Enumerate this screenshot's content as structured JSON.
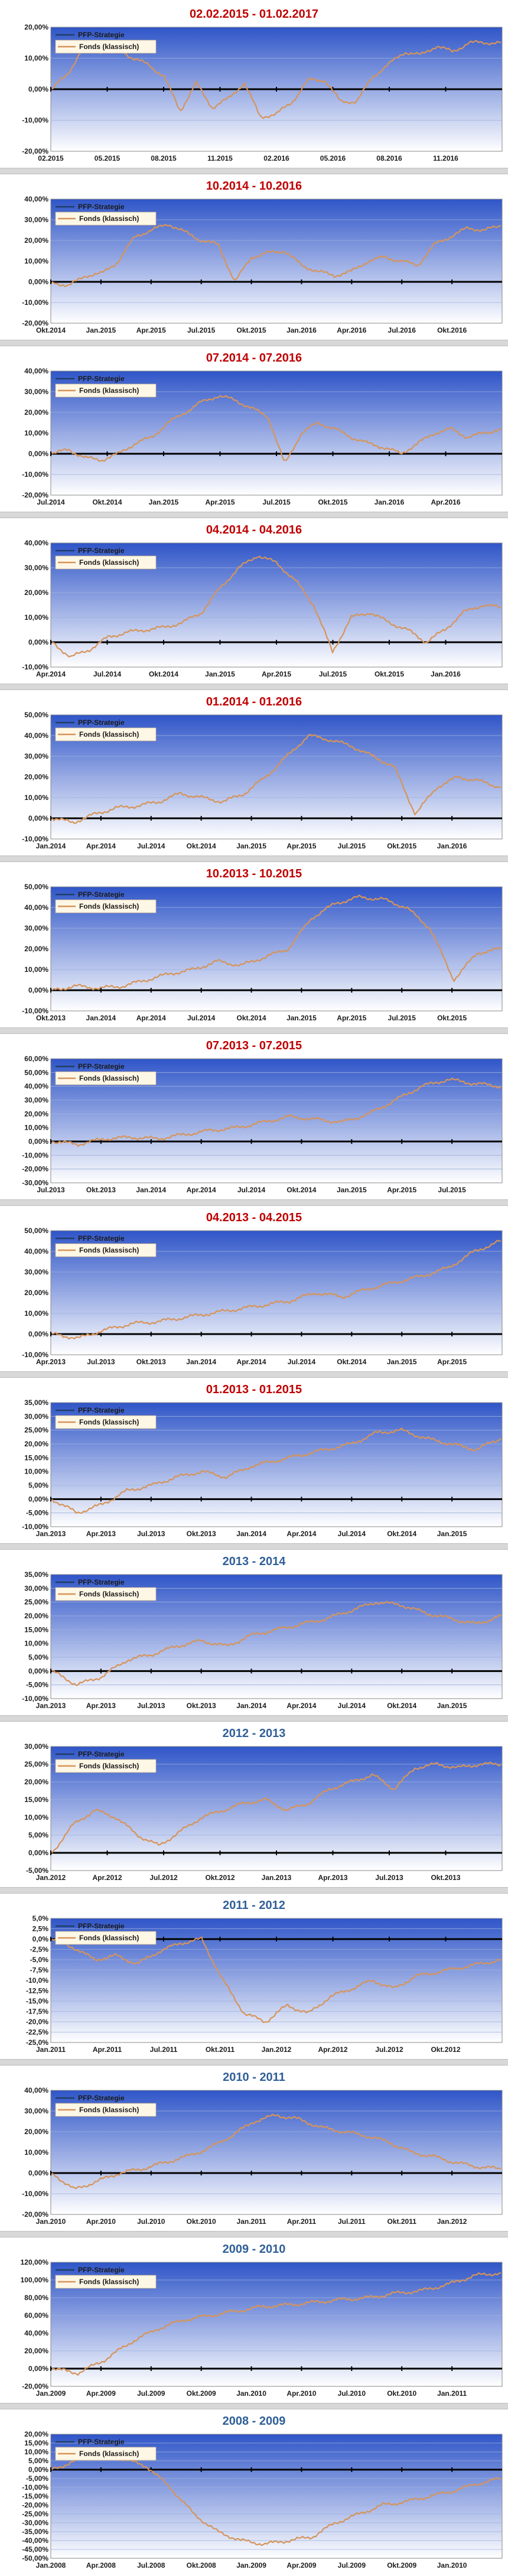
{
  "legend": {
    "strategy": "PFP-Strategie",
    "fund": "Fonds (klassisch)"
  },
  "colors": {
    "title_red": "#c00000",
    "title_blue": "#2f5f98",
    "fund_line": "#d6945a",
    "strategy_line": "#1f3e6a",
    "zero_line": "#000000",
    "plot_top": "#2f55c8",
    "plot_bottom": "#ffffff"
  },
  "chart_data": [
    {
      "type": "line",
      "title": "02.02.2015 - 01.02.2017",
      "title_color": "red",
      "ylim": [
        -20,
        20
      ],
      "ytick_step": 10,
      "xticks": [
        "02.2015",
        "05.2015",
        "08.2015",
        "11.2015",
        "02.2016",
        "05.2016",
        "08.2016",
        "11.2016"
      ],
      "series": [
        {
          "name": "PFP-Strategie",
          "values": []
        },
        {
          "name": "Fonds (klassisch)",
          "values": [
            0,
            5,
            14,
            12,
            14,
            10,
            8,
            4,
            -7,
            2,
            -6,
            -3,
            2,
            -9,
            -8,
            -4,
            3,
            3,
            -4,
            -4,
            4,
            8,
            12,
            11,
            14,
            12,
            15,
            15,
            15
          ]
        }
      ],
      "legend_position": "top-left"
    },
    {
      "type": "line",
      "title": "10.2014 - 10.2016",
      "title_color": "red",
      "ylim": [
        -20,
        40
      ],
      "ytick_step": 10,
      "xticks": [
        "Okt.2014",
        "Jan.2015",
        "Apr.2015",
        "Jul.2015",
        "Okt.2015",
        "Jan.2016",
        "Apr.2016",
        "Jul.2016",
        "Okt.2016"
      ],
      "series": [
        {
          "name": "PFP-Strategie",
          "values": []
        },
        {
          "name": "Fonds (klassisch)",
          "values": [
            0,
            -2,
            3,
            4,
            10,
            22,
            25,
            28,
            24,
            20,
            18,
            0,
            12,
            14,
            15,
            8,
            5,
            3,
            5,
            10,
            12,
            10,
            8,
            18,
            22,
            26,
            25,
            27
          ]
        }
      ],
      "legend_position": "top-left"
    },
    {
      "type": "line",
      "title": "07.2014 - 07.2016",
      "title_color": "red",
      "ylim": [
        -20,
        40
      ],
      "ytick_step": 10,
      "xticks": [
        "Jul.2014",
        "Okt.2014",
        "Jan.2015",
        "Apr.2015",
        "Jul.2015",
        "Okt.2015",
        "Jan.2016",
        "Apr.2016"
      ],
      "series": [
        {
          "name": "PFP-Strategie",
          "values": []
        },
        {
          "name": "Fonds (klassisch)",
          "values": [
            0,
            2,
            -2,
            -3,
            0,
            5,
            8,
            15,
            20,
            25,
            28,
            26,
            22,
            18,
            -5,
            10,
            15,
            12,
            8,
            5,
            3,
            0,
            5,
            10,
            12,
            8,
            10,
            12
          ]
        }
      ],
      "legend_position": "top-left"
    },
    {
      "type": "line",
      "title": "04.2014 - 04.2016",
      "title_color": "red",
      "ylim": [
        -10,
        40
      ],
      "ytick_step": 10,
      "xticks": [
        "Apr.2014",
        "Jul.2014",
        "Okt.2014",
        "Jan.2015",
        "Apr.2015",
        "Jul.2015",
        "Okt.2015",
        "Jan.2016"
      ],
      "series": [
        {
          "name": "PFP-Strategie",
          "values": []
        },
        {
          "name": "Fonds (klassisch)",
          "values": [
            0,
            -6,
            -3,
            2,
            4,
            5,
            6,
            8,
            12,
            22,
            30,
            35,
            32,
            25,
            15,
            -4,
            10,
            12,
            8,
            5,
            0,
            5,
            12,
            15,
            14
          ]
        }
      ],
      "legend_position": "top-left"
    },
    {
      "type": "line",
      "title": "01.2014 - 01.2016",
      "title_color": "red",
      "ylim": [
        -10,
        50
      ],
      "ytick_step": 10,
      "xticks": [
        "Jan.2014",
        "Apr.2014",
        "Jul.2014",
        "Okt.2014",
        "Jan.2015",
        "Apr.2015",
        "Jul.2015",
        "Okt.2015",
        "Jan.2016"
      ],
      "series": [
        {
          "name": "PFP-Strategie",
          "values": []
        },
        {
          "name": "Fonds (klassisch)",
          "values": [
            0,
            -2,
            2,
            5,
            6,
            8,
            12,
            10,
            8,
            12,
            20,
            30,
            40,
            38,
            35,
            30,
            25,
            2,
            15,
            20,
            18,
            15
          ]
        }
      ],
      "legend_position": "top-left"
    },
    {
      "type": "line",
      "title": "10.2013 - 10.2015",
      "title_color": "red",
      "ylim": [
        -10,
        50
      ],
      "ytick_step": 10,
      "xticks": [
        "Okt.2013",
        "Jan.2014",
        "Apr.2014",
        "Jul.2014",
        "Okt.2014",
        "Jan.2015",
        "Apr.2015",
        "Jul.2015",
        "Okt.2015"
      ],
      "series": [
        {
          "name": "PFP-Strategie",
          "values": []
        },
        {
          "name": "Fonds (klassisch)",
          "values": [
            0,
            2,
            1,
            2,
            5,
            8,
            10,
            14,
            12,
            16,
            20,
            35,
            42,
            45,
            44,
            40,
            30,
            5,
            18,
            20
          ]
        }
      ],
      "legend_position": "top-left"
    },
    {
      "type": "line",
      "title": "07.2013 - 07.2015",
      "title_color": "red",
      "ylim": [
        -30,
        60
      ],
      "ytick_step": 10,
      "xticks": [
        "Jul.2013",
        "Okt.2013",
        "Jan.2014",
        "Apr.2014",
        "Jul.2014",
        "Okt.2014",
        "Jan.2015",
        "Apr.2015",
        "Jul.2015"
      ],
      "series": [
        {
          "name": "PFP-Strategie",
          "values": []
        },
        {
          "name": "Fonds (klassisch)",
          "values": [
            0,
            -2,
            2,
            3,
            2,
            5,
            8,
            10,
            14,
            18,
            16,
            14,
            20,
            30,
            40,
            45,
            42,
            40
          ]
        }
      ],
      "legend_position": "top-left"
    },
    {
      "type": "line",
      "title": "04.2013 - 04.2015",
      "title_color": "red",
      "ylim": [
        -10,
        50
      ],
      "ytick_step": 10,
      "xticks": [
        "Apr.2013",
        "Jul.2013",
        "Okt.2013",
        "Jan.2014",
        "Apr.2014",
        "Jul.2014",
        "Okt.2014",
        "Jan.2015",
        "Apr.2015"
      ],
      "series": [
        {
          "name": "PFP-Strategie",
          "values": []
        },
        {
          "name": "Fonds (klassisch)",
          "values": [
            0,
            -2,
            2,
            5,
            6,
            8,
            10,
            12,
            14,
            16,
            20,
            18,
            22,
            25,
            28,
            32,
            40,
            45
          ]
        }
      ],
      "legend_position": "top-left"
    },
    {
      "type": "line",
      "title": "01.2013 - 01.2015",
      "title_color": "red",
      "ylim": [
        -10,
        35
      ],
      "ytick_step": 5,
      "xticks": [
        "Jan.2013",
        "Apr.2013",
        "Jul.2013",
        "Okt.2013",
        "Jan.2014",
        "Apr.2014",
        "Jul.2014",
        "Okt.2014",
        "Jan.2015"
      ],
      "series": [
        {
          "name": "PFP-Strategie",
          "values": []
        },
        {
          "name": "Fonds (klassisch)",
          "values": [
            0,
            -5,
            -2,
            3,
            5,
            8,
            10,
            8,
            12,
            14,
            16,
            18,
            20,
            24,
            25,
            22,
            20,
            18,
            22
          ]
        }
      ],
      "legend_position": "top-left"
    },
    {
      "type": "line",
      "title": "2013 - 2014",
      "title_color": "blue",
      "ylim": [
        -10,
        35
      ],
      "ytick_step": 5,
      "xticks": [
        "Jan.2013",
        "Apr.2013",
        "Jul.2013",
        "Okt.2013",
        "Jan.2014",
        "Apr.2014",
        "Jul.2014",
        "Okt.2014",
        "Jan.2015"
      ],
      "series": [
        {
          "name": "PFP-Strategie",
          "values": []
        },
        {
          "name": "Fonds (klassisch)",
          "values": [
            0,
            -5,
            -2,
            4,
            6,
            9,
            11,
            9,
            13,
            15,
            17,
            19,
            22,
            25,
            24,
            21,
            19,
            17,
            20
          ]
        }
      ],
      "legend_position": "top-left"
    },
    {
      "type": "line",
      "title": "2012 - 2013",
      "title_color": "blue",
      "ylim": [
        -5,
        30
      ],
      "ytick_step": 5,
      "xticks": [
        "Jan.2012",
        "Apr.2012",
        "Jul.2012",
        "Okt.2012",
        "Jan.2013",
        "Apr.2013",
        "Jul.2013",
        "Okt.2013"
      ],
      "series": [
        {
          "name": "PFP-Strategie",
          "values": []
        },
        {
          "name": "Fonds (klassisch)",
          "values": [
            0,
            8,
            12,
            10,
            5,
            2,
            6,
            10,
            12,
            14,
            15,
            12,
            14,
            18,
            20,
            22,
            18,
            24,
            25,
            24,
            25,
            25
          ]
        }
      ],
      "legend_position": "top-left"
    },
    {
      "type": "line",
      "title": "2011 - 2012",
      "title_color": "blue",
      "ylim": [
        -25,
        5
      ],
      "ytick_step": 2.5,
      "xticks": [
        "Jan.2011",
        "Apr.2011",
        "Jul.2011",
        "Okt.2011",
        "Jan.2012",
        "Apr.2012",
        "Jul.2012",
        "Okt.2012"
      ],
      "series": [
        {
          "name": "PFP-Strategie",
          "values": []
        },
        {
          "name": "Fonds (klassisch)",
          "values": [
            0,
            -2,
            -5,
            -4,
            -6,
            -3,
            -1,
            0,
            -10,
            -18,
            -20,
            -16,
            -18,
            -14,
            -12,
            -10,
            -12,
            -9,
            -8,
            -7,
            -6,
            -5
          ]
        }
      ],
      "legend_position": "top-left"
    },
    {
      "type": "line",
      "title": "2010 - 2011",
      "title_color": "blue",
      "ylim": [
        -20,
        40
      ],
      "ytick_step": 10,
      "xticks": [
        "Jan.2010",
        "Apr.2010",
        "Jul.2010",
        "Okt.2010",
        "Jan.2011",
        "Apr.2011",
        "Jul.2011",
        "Okt.2011",
        "Jan.2012"
      ],
      "series": [
        {
          "name": "PFP-Strategie",
          "values": []
        },
        {
          "name": "Fonds (klassisch)",
          "values": [
            0,
            -8,
            -4,
            0,
            2,
            5,
            8,
            12,
            18,
            25,
            28,
            26,
            22,
            20,
            18,
            15,
            10,
            8,
            5,
            3,
            2
          ]
        }
      ],
      "legend_position": "top-left"
    },
    {
      "type": "line",
      "title": "2009 - 2010",
      "title_color": "blue",
      "ylim": [
        -20,
        120
      ],
      "ytick_step": 20,
      "xticks": [
        "Jan.2009",
        "Apr.2009",
        "Jul.2009",
        "Okt.2009",
        "Jan.2010",
        "Apr.2010",
        "Jul.2010",
        "Okt.2010",
        "Jan.2011"
      ],
      "series": [
        {
          "name": "PFP-Strategie",
          "values": []
        },
        {
          "name": "Fonds (klassisch)",
          "values": [
            0,
            -5,
            10,
            30,
            45,
            55,
            60,
            65,
            70,
            72,
            75,
            78,
            80,
            85,
            88,
            95,
            105,
            108
          ]
        }
      ],
      "legend_position": "top-left"
    },
    {
      "type": "line",
      "title": "2008 - 2009",
      "title_color": "blue",
      "ylim": [
        -50,
        20
      ],
      "ytick_step": 5,
      "xticks": [
        "Jan.2008",
        "Apr.2008",
        "Jul.2008",
        "Okt.2008",
        "Jan.2009",
        "Apr.2009",
        "Jul.2009",
        "Okt.2009",
        "Jan.2010"
      ],
      "series": [
        {
          "name": "PFP-Strategie",
          "values": []
        },
        {
          "name": "Fonds (klassisch)",
          "values": [
            0,
            5,
            8,
            6,
            2,
            -10,
            -25,
            -35,
            -40,
            -42,
            -40,
            -38,
            -30,
            -25,
            -20,
            -18,
            -15,
            -12,
            -8,
            -5
          ]
        }
      ],
      "legend_position": "top-left"
    }
  ]
}
